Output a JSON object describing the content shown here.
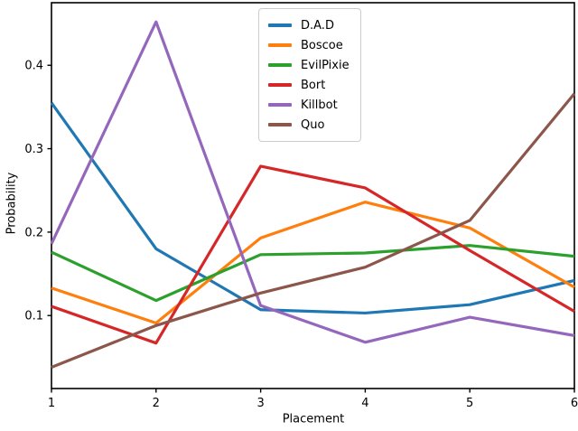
{
  "chart_data": {
    "type": "line",
    "title": "",
    "xlabel": "Placement",
    "ylabel": "Probability",
    "x": [
      1,
      2,
      3,
      4,
      5,
      6
    ],
    "xticks": [
      1,
      2,
      3,
      4,
      5,
      6
    ],
    "yticks": [
      0.1,
      0.2,
      0.3,
      0.4
    ],
    "xlim": [
      1,
      6
    ],
    "ylim": [
      0.0125,
      0.475
    ],
    "grid": false,
    "legend_position": "upper center",
    "series": [
      {
        "name": "D.A.D",
        "color": "#1f77b4",
        "values": [
          0.355,
          0.18,
          0.107,
          0.103,
          0.113,
          0.142
        ]
      },
      {
        "name": "Boscoe",
        "color": "#ff7f0e",
        "values": [
          0.133,
          0.091,
          0.193,
          0.236,
          0.205,
          0.134
        ]
      },
      {
        "name": "EvilPixie",
        "color": "#2ca02c",
        "values": [
          0.176,
          0.118,
          0.173,
          0.175,
          0.184,
          0.171
        ]
      },
      {
        "name": "Bort",
        "color": "#d62728",
        "values": [
          0.111,
          0.067,
          0.279,
          0.253,
          0.178,
          0.105
        ]
      },
      {
        "name": "Killbot",
        "color": "#9467bd",
        "values": [
          0.186,
          0.452,
          0.112,
          0.068,
          0.098,
          0.076
        ]
      },
      {
        "name": "Quo",
        "color": "#8c564b",
        "values": [
          0.038,
          0.088,
          0.127,
          0.158,
          0.214,
          0.366
        ]
      }
    ]
  }
}
